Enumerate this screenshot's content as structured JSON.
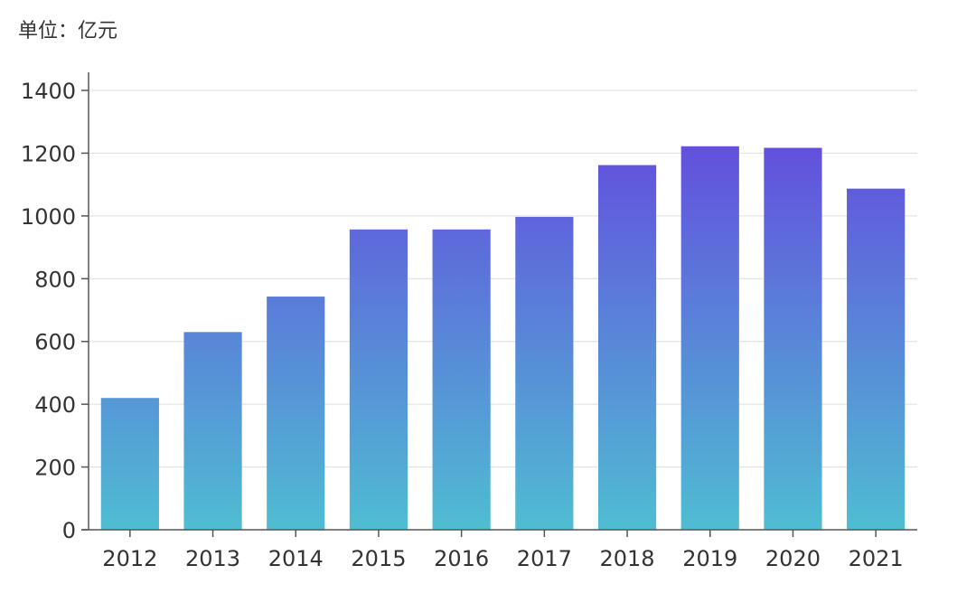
{
  "unit_label": "单位：亿元",
  "chart_data": {
    "type": "bar",
    "title": "",
    "xlabel": "",
    "ylabel": "",
    "categories": [
      "2012",
      "2013",
      "2014",
      "2015",
      "2016",
      "2017",
      "2018",
      "2019",
      "2020",
      "2021"
    ],
    "values": [
      420,
      630,
      743,
      957,
      957,
      997,
      1162,
      1222,
      1217,
      1087
    ],
    "ylim": [
      0,
      1400
    ],
    "yticks": [
      0,
      200,
      400,
      600,
      800,
      1000,
      1200,
      1400
    ],
    "grid": true,
    "colors": {
      "bar_top": "#6540E0",
      "bar_bottom": "#4FBDD2",
      "grid": "#dddddd",
      "axis": "#555555"
    }
  }
}
